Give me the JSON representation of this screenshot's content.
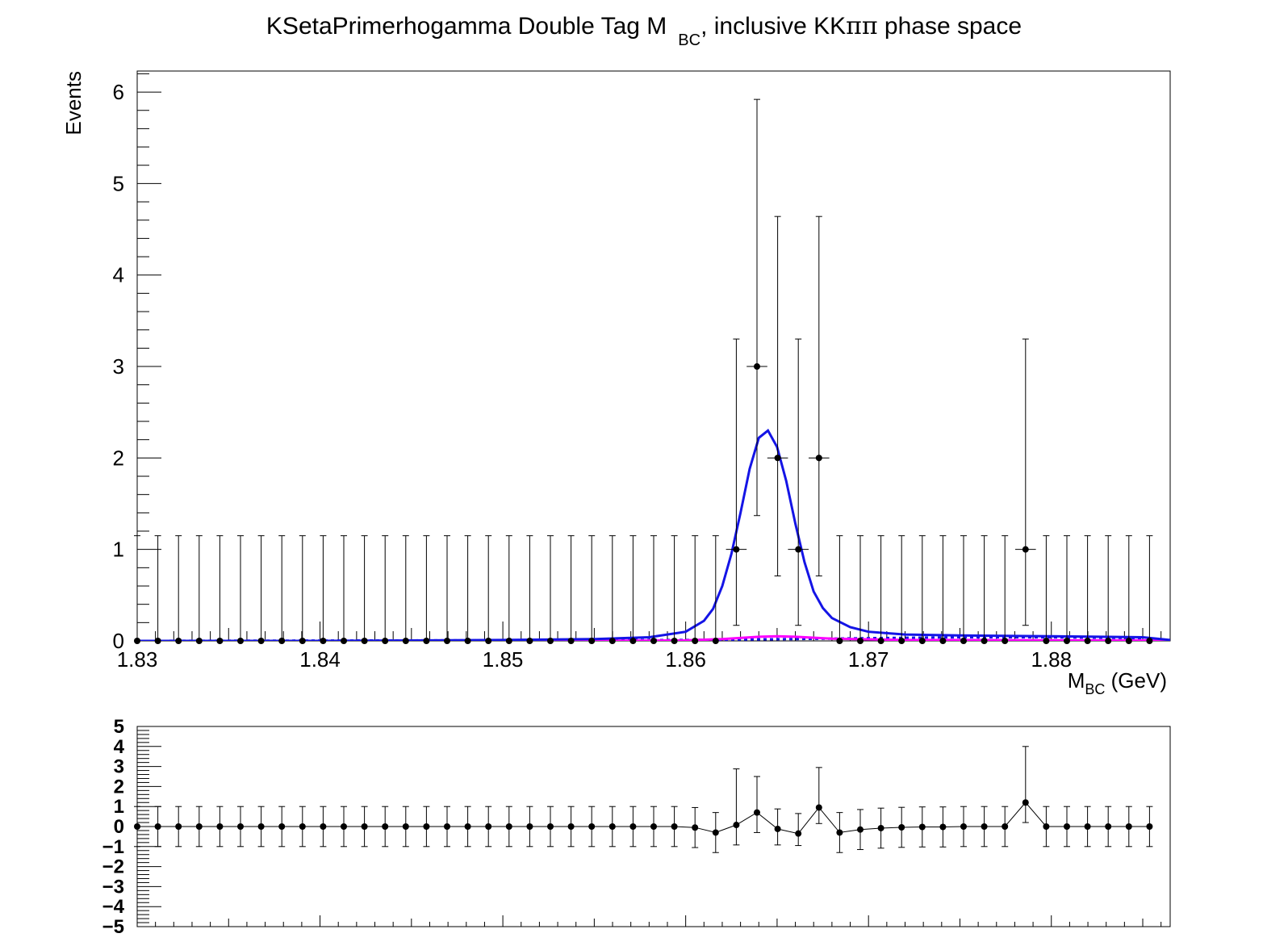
{
  "chart_data": [
    {
      "type": "scatter",
      "title": "KSetaPrimerhogamma Double Tag M_BC, inclusive KKππ phase space",
      "title_parts": {
        "main": "KSetaPrimerhogamma Double Tag M",
        "sub": "BC",
        "tail": ", inclusive KK",
        "greek": "ππ",
        "end": " phase space"
      },
      "xlabel": "M_BC (GeV)",
      "xlabel_parts": {
        "main": "M",
        "sub": "BC",
        "tail": " (GeV)"
      },
      "ylabel": "Events",
      "xlim": [
        1.83,
        1.8865
      ],
      "ylim": [
        0,
        6.23
      ],
      "x_ticks": [
        "1.83",
        "1.84",
        "1.85",
        "1.86",
        "1.87",
        "1.88"
      ],
      "y_ticks": [
        "0",
        "1",
        "2",
        "3",
        "4",
        "5",
        "6"
      ],
      "bin_width": 0.00113,
      "grid": false,
      "series": [
        {
          "role": "data points with Poisson error bars",
          "x": [
            1.83,
            1.83113,
            1.83226,
            1.83339,
            1.83452,
            1.83565,
            1.83678,
            1.83791,
            1.83904,
            1.84017,
            1.8413,
            1.84243,
            1.84356,
            1.84469,
            1.84582,
            1.84695,
            1.84808,
            1.84921,
            1.85034,
            1.85147,
            1.8526,
            1.85373,
            1.85486,
            1.85599,
            1.85712,
            1.85825,
            1.85938,
            1.86051,
            1.86164,
            1.86277,
            1.8639,
            1.86503,
            1.86616,
            1.86729,
            1.86842,
            1.86955,
            1.87068,
            1.87181,
            1.87294,
            1.87407,
            1.8752,
            1.87633,
            1.87746,
            1.87859,
            1.87972,
            1.88085,
            1.88198,
            1.88311,
            1.88424,
            1.88537
          ],
          "y": [
            0,
            0,
            0,
            0,
            0,
            0,
            0,
            0,
            0,
            0,
            0,
            0,
            0,
            0,
            0,
            0,
            0,
            0,
            0,
            0,
            0,
            0,
            0,
            0,
            0,
            0,
            0,
            0,
            0,
            1,
            3,
            2,
            1,
            2,
            0,
            0,
            0,
            0,
            0,
            0,
            0,
            0,
            0,
            1,
            0,
            0,
            0,
            0,
            0,
            0
          ],
          "color": "#000000"
        },
        {
          "role": "total fit curve",
          "x": [
            1.83,
            1.84,
            1.85,
            1.855,
            1.858,
            1.86,
            1.861,
            1.8615,
            1.862,
            1.8625,
            1.863,
            1.8635,
            1.864,
            1.8645,
            1.865,
            1.8655,
            1.866,
            1.8665,
            1.867,
            1.8675,
            1.868,
            1.869,
            1.87,
            1.872,
            1.875,
            1.88,
            1.885,
            1.8865
          ],
          "y": [
            0,
            0,
            0.01,
            0.02,
            0.04,
            0.1,
            0.22,
            0.35,
            0.6,
            0.95,
            1.4,
            1.88,
            2.22,
            2.3,
            2.12,
            1.75,
            1.28,
            0.86,
            0.54,
            0.36,
            0.25,
            0.15,
            0.1,
            0.07,
            0.06,
            0.05,
            0.04,
            0.01
          ],
          "color": "#1414e6"
        },
        {
          "role": "background (dashed)",
          "x": [
            1.83,
            1.86,
            1.866,
            1.87,
            1.875,
            1.88,
            1.885
          ],
          "y": [
            0,
            0.01,
            0.02,
            0.03,
            0.04,
            0.04,
            0.03
          ],
          "color": "#1414e6"
        },
        {
          "role": "peaking component",
          "x": [
            1.83,
            1.855,
            1.86,
            1.862,
            1.864,
            1.865,
            1.866,
            1.868,
            1.872,
            1.8865
          ],
          "y": [
            0,
            0,
            0.005,
            0.02,
            0.045,
            0.05,
            0.045,
            0.025,
            0.01,
            0.005
          ],
          "color": "#ff00ff"
        }
      ]
    },
    {
      "type": "scatter",
      "role": "residual / pull panel",
      "xlim": [
        1.83,
        1.8865
      ],
      "ylim": [
        -5,
        5
      ],
      "y_ticks": [
        "5",
        "4",
        "3",
        "2",
        "1",
        "0",
        "−1",
        "−2",
        "−3",
        "−4",
        "−5"
      ],
      "series": [
        {
          "x": [
            1.83,
            1.83113,
            1.83226,
            1.83339,
            1.83452,
            1.83565,
            1.83678,
            1.83791,
            1.83904,
            1.84017,
            1.8413,
            1.84243,
            1.84356,
            1.84469,
            1.84582,
            1.84695,
            1.84808,
            1.84921,
            1.85034,
            1.85147,
            1.8526,
            1.85373,
            1.85486,
            1.85599,
            1.85712,
            1.85825,
            1.85938,
            1.86051,
            1.86164,
            1.86277,
            1.8639,
            1.86503,
            1.86616,
            1.86729,
            1.86842,
            1.86955,
            1.87068,
            1.87181,
            1.87294,
            1.87407,
            1.8752,
            1.87633,
            1.87746,
            1.87859,
            1.87972,
            1.88085,
            1.88198,
            1.88311,
            1.88424,
            1.88537
          ],
          "y": [
            0,
            0,
            0,
            0,
            0,
            0,
            0,
            0,
            0,
            0,
            0,
            0,
            0,
            0,
            0,
            0,
            0,
            0,
            0,
            0,
            0,
            0,
            0,
            0,
            0,
            0,
            0,
            -0.05,
            -0.3,
            0.08,
            0.7,
            -0.12,
            -0.35,
            0.95,
            -0.3,
            -0.15,
            -0.08,
            -0.04,
            -0.02,
            -0.02,
            0,
            0,
            0,
            1.2,
            0,
            0,
            0,
            0,
            0,
            0
          ],
          "err_lo": [
            1,
            1,
            1,
            1,
            1,
            1,
            1,
            1,
            1,
            1,
            1,
            1,
            1,
            1,
            1,
            1,
            1,
            1,
            1,
            1,
            1,
            1,
            1,
            1,
            1,
            1,
            1,
            1,
            1,
            1.0,
            1.0,
            0.8,
            0.6,
            0.8,
            1,
            1,
            1,
            1,
            1,
            1,
            1,
            1,
            1,
            1.0,
            1,
            1,
            1,
            1,
            1,
            1
          ],
          "err_hi": [
            1,
            1,
            1,
            1,
            1,
            1,
            1,
            1,
            1,
            1,
            1,
            1,
            1,
            1,
            1,
            1,
            1,
            1,
            1,
            1,
            1,
            1,
            1,
            1,
            1,
            1,
            1,
            1,
            1,
            2.8,
            1.8,
            1.0,
            1.0,
            2.0,
            1,
            1,
            1,
            1,
            1,
            1,
            1,
            1,
            1,
            2.8,
            1,
            1,
            1,
            1,
            1,
            1
          ],
          "color": "#000000"
        }
      ]
    }
  ]
}
